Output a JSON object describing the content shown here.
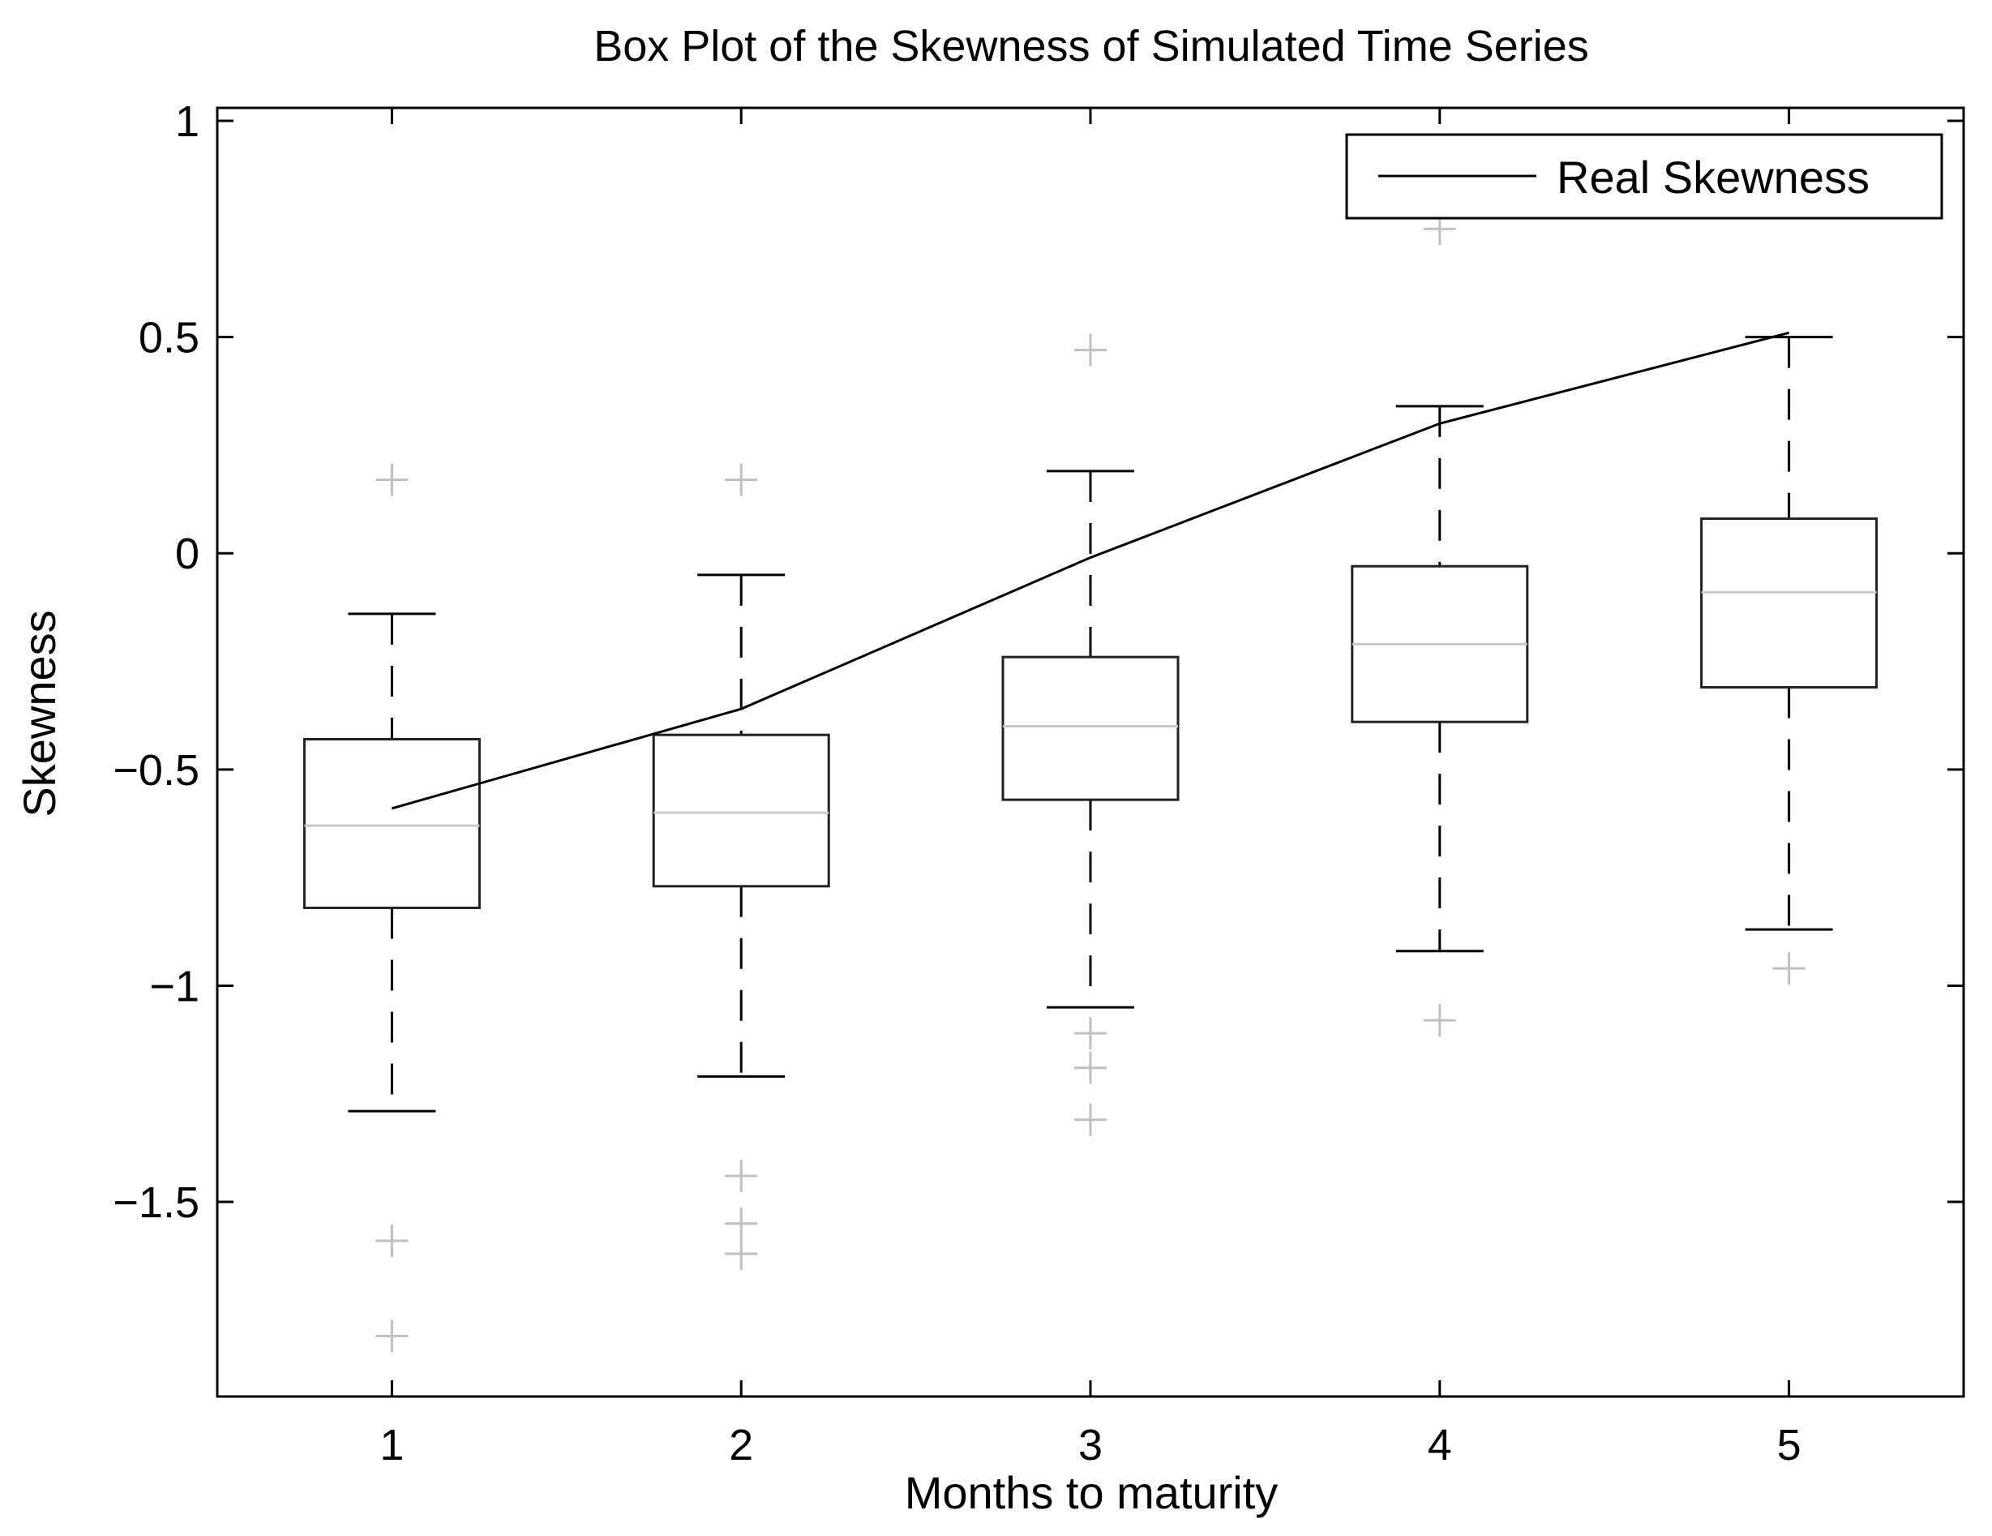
{
  "chart_data": {
    "type": "box",
    "title": "Box Plot of the Skewness of Simulated Time Series",
    "xlabel": "Months to maturity",
    "ylabel": "Skewness",
    "ylim": [
      -1.95,
      1.03
    ],
    "categories": [
      "1",
      "2",
      "3",
      "4",
      "5"
    ],
    "yticks": [
      1,
      0.5,
      0,
      -0.5,
      -1,
      -1.5
    ],
    "ytick_labels": [
      "1",
      "0.5",
      "0",
      "−0.5",
      "−1",
      "−1.5"
    ],
    "boxes": [
      {
        "category": "1",
        "whisker_low": -1.29,
        "q1": -0.82,
        "median": -0.63,
        "q3": -0.43,
        "whisker_high": -0.14,
        "outliers": [
          0.17,
          -1.59,
          -1.81
        ]
      },
      {
        "category": "2",
        "whisker_low": -1.21,
        "q1": -0.77,
        "median": -0.6,
        "q3": -0.42,
        "whisker_high": -0.05,
        "outliers": [
          0.17,
          -1.44,
          -1.55,
          -1.62
        ]
      },
      {
        "category": "3",
        "whisker_low": -1.05,
        "q1": -0.57,
        "median": -0.4,
        "q3": -0.24,
        "whisker_high": 0.19,
        "outliers": [
          0.47,
          -1.11,
          -1.19,
          -1.31
        ]
      },
      {
        "category": "4",
        "whisker_low": -0.92,
        "q1": -0.39,
        "median": -0.21,
        "q3": -0.03,
        "whisker_high": 0.34,
        "outliers": [
          0.75,
          -1.08
        ]
      },
      {
        "category": "5",
        "whisker_low": -0.87,
        "q1": -0.31,
        "median": -0.09,
        "q3": 0.08,
        "whisker_high": 0.5,
        "outliers": [
          -0.96
        ]
      }
    ],
    "series": [
      {
        "name": "Real Skewness",
        "values": [
          -0.59,
          -0.36,
          -0.01,
          0.3,
          0.51
        ]
      }
    ],
    "legend": {
      "position": "top-right",
      "entries": [
        "Real Skewness"
      ]
    },
    "colors": {
      "box": "#222222",
      "median": "#c8c8c8",
      "outlier": "#c0c0c0",
      "line": "#000000"
    }
  }
}
